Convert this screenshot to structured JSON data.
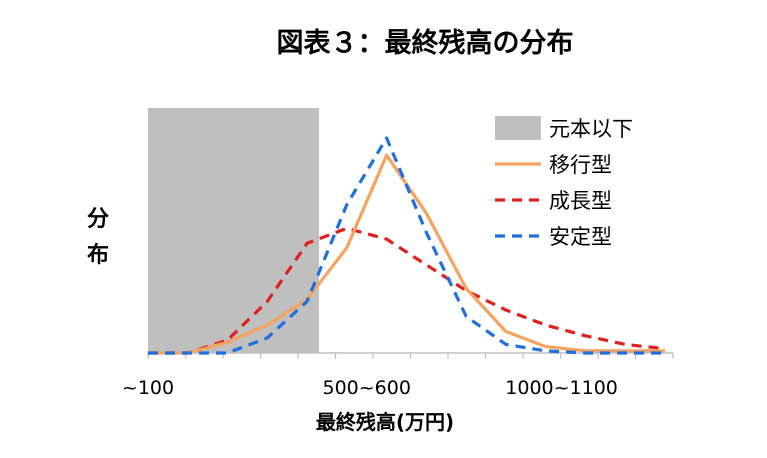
{
  "chart_data": {
    "type": "line",
    "title": "図表３：最終残高の分布",
    "xlabel": "最終残高(万円)",
    "ylabel": "分布",
    "x_tick_labels": [
      "~100",
      "500~600",
      "1000~1100"
    ],
    "x_bins": 14,
    "ylim": [
      0,
      1
    ],
    "shaded_region": {
      "label": "元本以下",
      "x_range": [
        0,
        4.3
      ],
      "color": "#bfbfbf"
    },
    "legend_position": "top-right",
    "series": [
      {
        "name": "移行型",
        "color": "#f4a460",
        "style": "solid",
        "values": [
          0,
          0,
          0.05,
          0.13,
          0.25,
          0.49,
          0.92,
          0.65,
          0.3,
          0.1,
          0.03,
          0.01,
          0.01,
          0.01
        ]
      },
      {
        "name": "成長型",
        "color": "#e02020",
        "style": "dashed",
        "values": [
          0,
          0,
          0.06,
          0.24,
          0.51,
          0.58,
          0.53,
          0.41,
          0.29,
          0.2,
          0.13,
          0.08,
          0.04,
          0.02
        ]
      },
      {
        "name": "安定型",
        "color": "#1f6fe0",
        "style": "dashed",
        "values": [
          0,
          0,
          0,
          0.07,
          0.24,
          0.69,
          1.0,
          0.56,
          0.17,
          0.04,
          0.01,
          0,
          0,
          0
        ]
      }
    ]
  }
}
